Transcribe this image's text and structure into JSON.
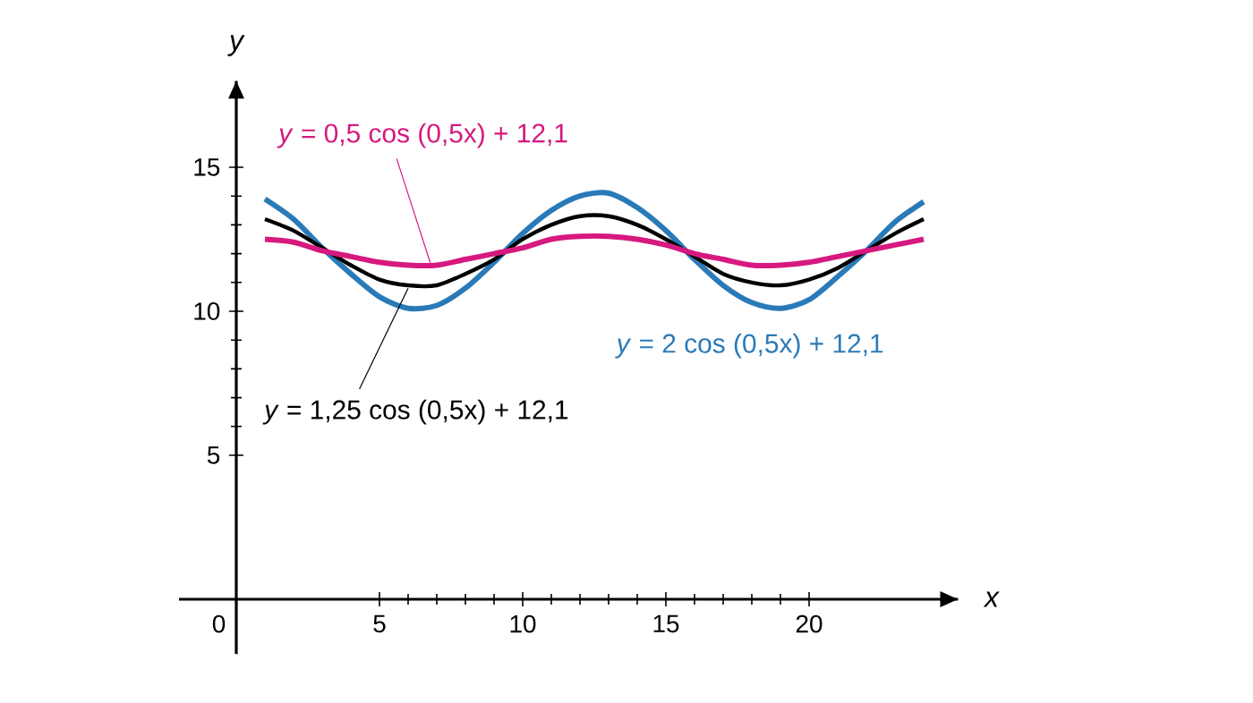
{
  "chart_data": {
    "type": "line",
    "xlabel": "x",
    "ylabel": "y",
    "x": [
      1,
      2,
      3,
      4,
      5,
      6,
      7,
      8,
      9,
      10,
      11,
      12,
      13,
      14,
      15,
      16,
      17,
      18,
      19,
      20,
      21,
      22,
      23,
      24
    ],
    "series": [
      {
        "name": "*y* = 2 cos (0,5x) + 12,1",
        "color": "#2a7ab8",
        "values": [
          13.9,
          13.2,
          12.2,
          11.3,
          10.5,
          10.1,
          10.2,
          10.8,
          11.7,
          12.7,
          13.5,
          14.0,
          14.1,
          13.6,
          12.8,
          11.8,
          10.9,
          10.3,
          10.1,
          10.4,
          11.2,
          12.1,
          13.1,
          13.8
        ]
      },
      {
        "name": "*y* = 1,25 cos (0,5x) + 12,1",
        "color": "#000000",
        "values": [
          13.2,
          12.8,
          12.2,
          11.6,
          11.1,
          10.9,
          10.9,
          11.3,
          11.8,
          12.5,
          13.0,
          13.3,
          13.3,
          13.0,
          12.5,
          11.9,
          11.3,
          11.0,
          10.9,
          11.1,
          11.5,
          12.1,
          12.7,
          13.2
        ]
      },
      {
        "name": "*y* = 0,5 cos (0,5x) + 12,1",
        "color": "#d6197f",
        "values": [
          12.5,
          12.4,
          12.1,
          11.9,
          11.7,
          11.6,
          11.6,
          11.8,
          12.0,
          12.2,
          12.5,
          12.6,
          12.6,
          12.5,
          12.3,
          12.0,
          11.8,
          11.6,
          11.6,
          11.7,
          11.9,
          12.1,
          12.3,
          12.5
        ]
      }
    ],
    "xlim": [
      -2,
      25.2
    ],
    "ylim": [
      -1.9,
      18
    ],
    "xticks": [
      0,
      5,
      10,
      15,
      20
    ],
    "yticks": [
      5,
      10,
      15
    ],
    "marker": "none",
    "line_style": "solid",
    "grid": false
  }
}
